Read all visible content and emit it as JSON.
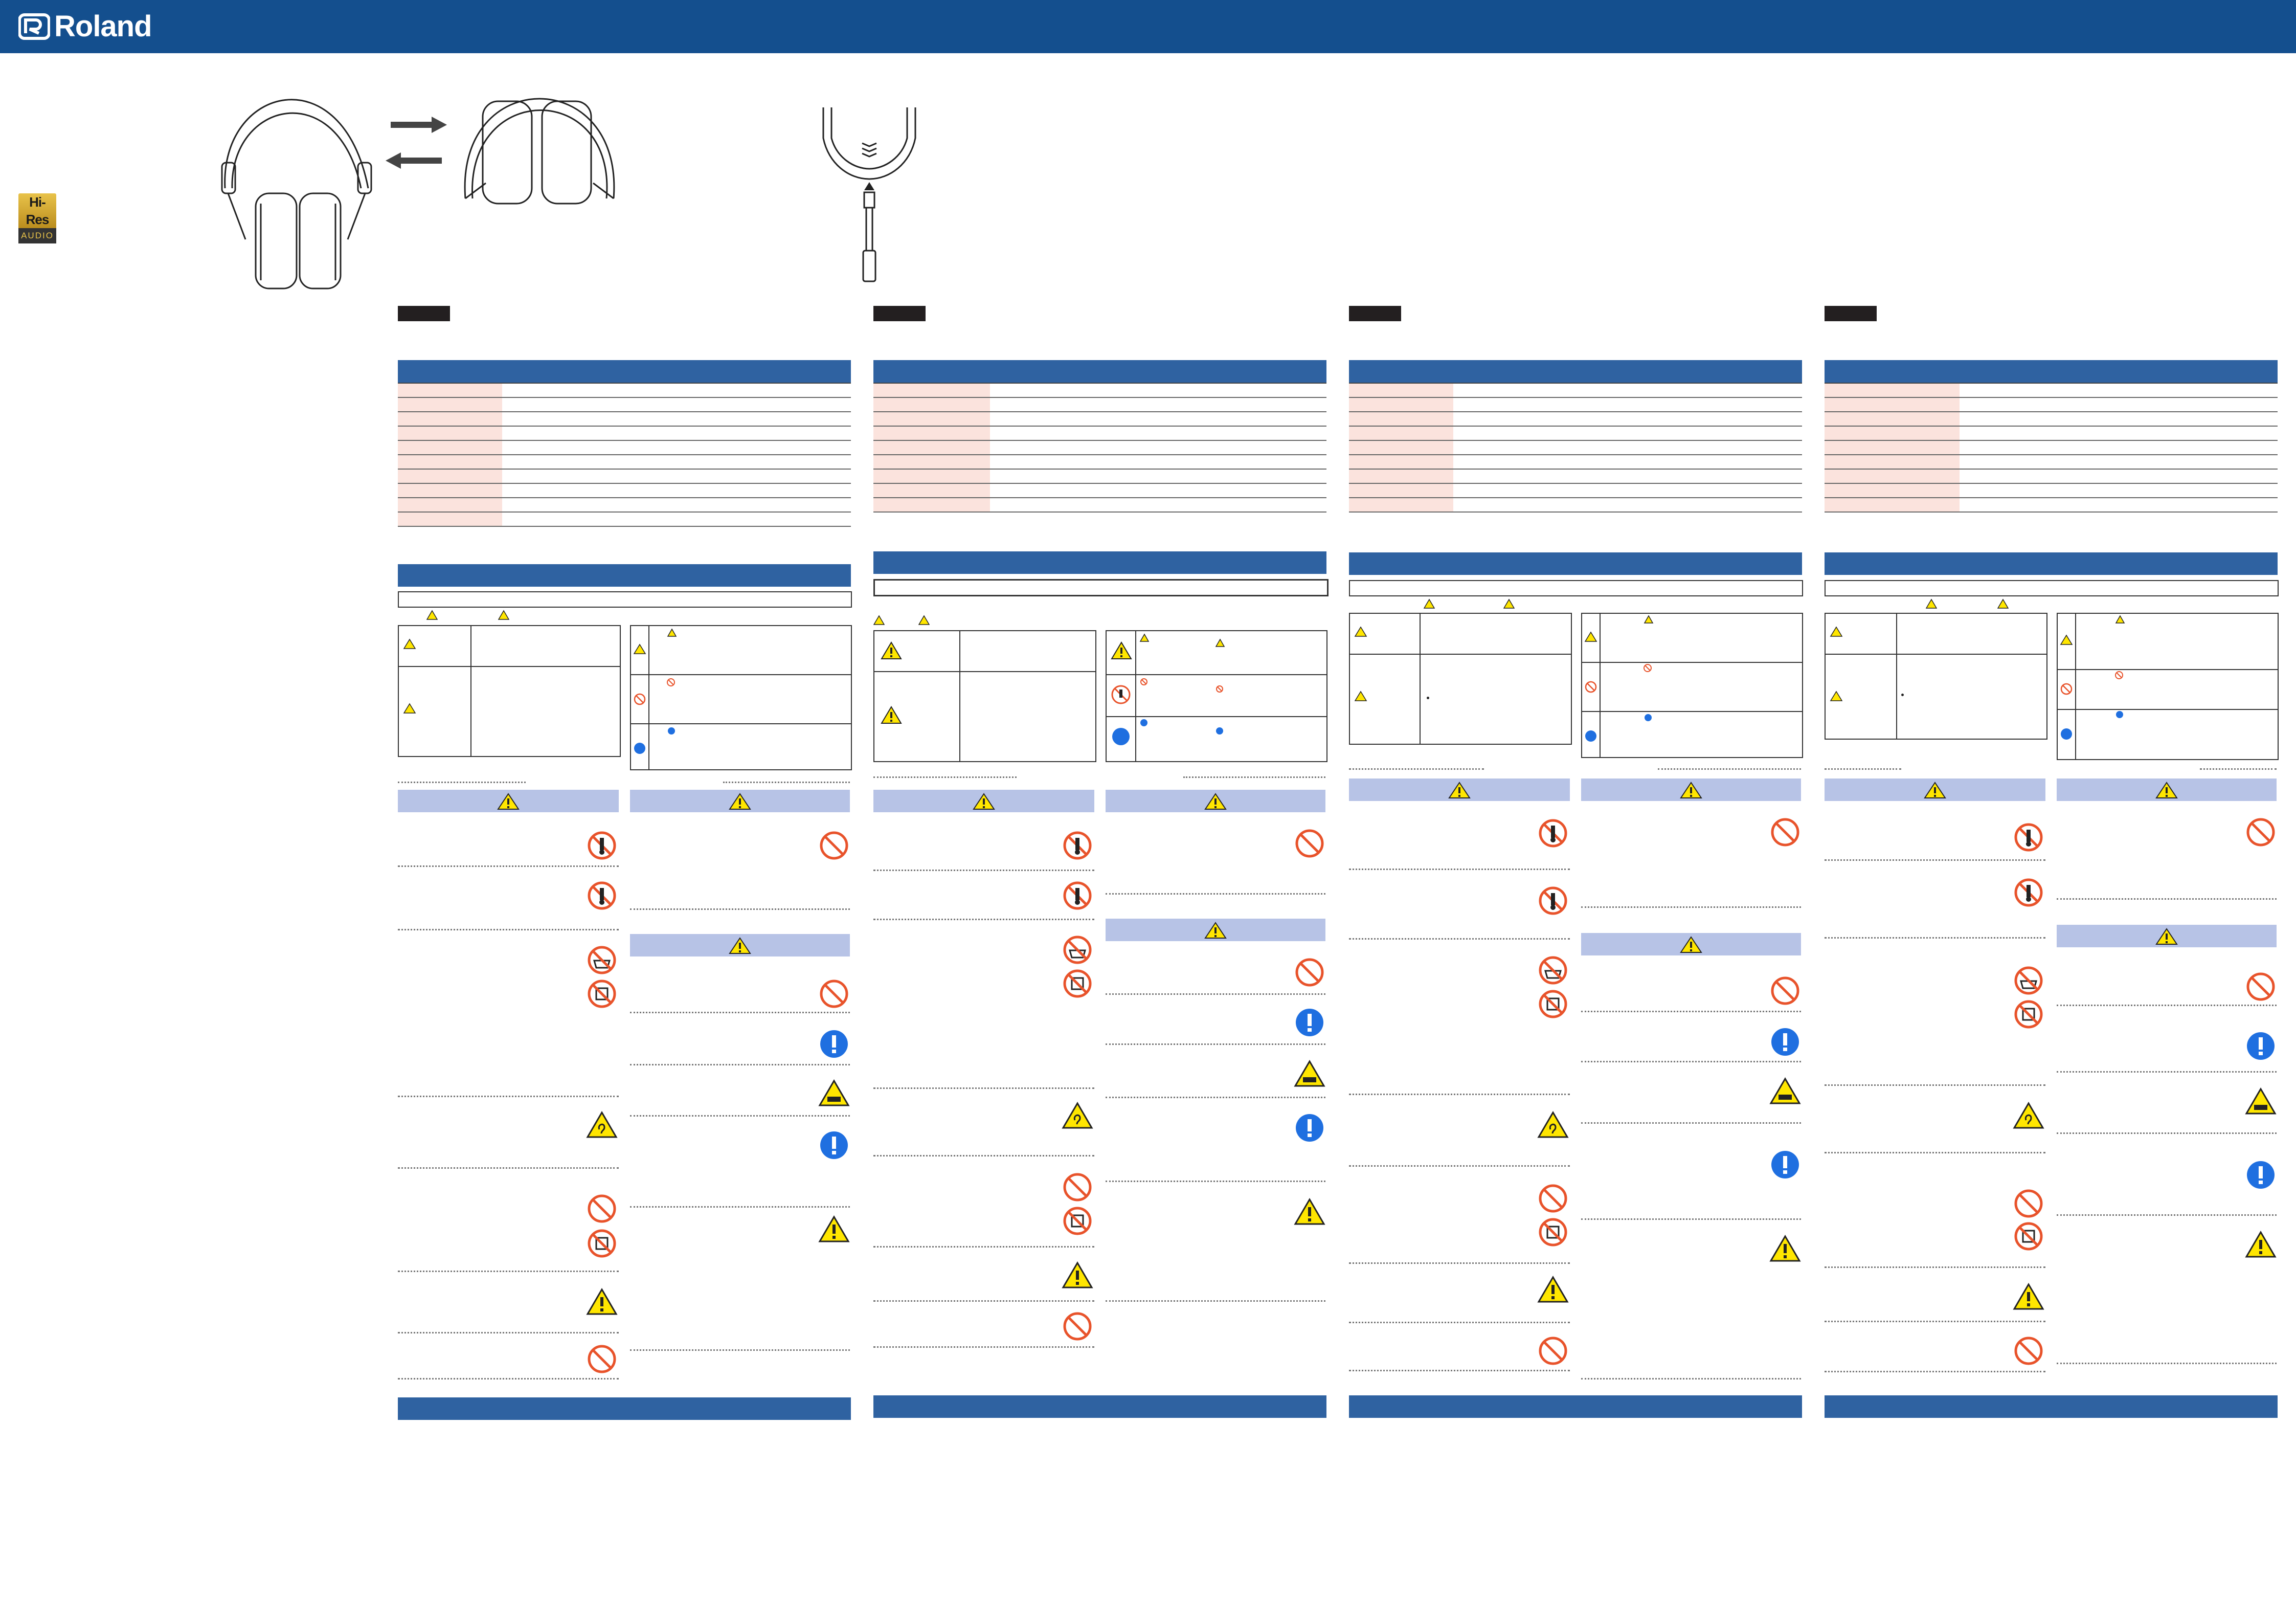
{
  "brand": {
    "name": "Roland"
  },
  "badge": {
    "line1": "Hi-Res",
    "line2": "AUDIO"
  },
  "colors": {
    "header_bar": "#144f8e",
    "section_bar": "#2f62a1",
    "warning_header": "#b7c3e6",
    "spec_key_bg": "#fbe3dd",
    "prohibit_red": "#e8532b",
    "mandatory_blue": "#1f6fe0",
    "caution_yellow": "#ffe600"
  },
  "icons": [
    "roland-logo-icon",
    "hi-res-audio-icon",
    "headphones-fold-illustration",
    "cable-connection-illustration",
    "warning-triangle-icon",
    "prohibition-icon",
    "do-not-disassemble-icon",
    "no-water-icon",
    "no-wet-hands-icon",
    "hearing-warning-icon",
    "mandatory-action-icon",
    "hot-surface-icon"
  ],
  "columns": [
    "language-1",
    "language-2",
    "language-3",
    "language-4"
  ]
}
